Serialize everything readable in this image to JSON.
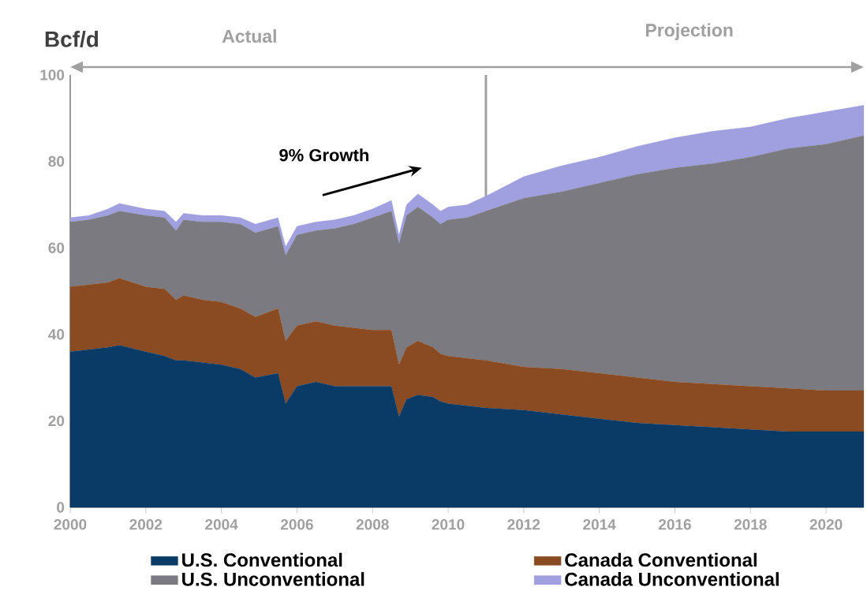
{
  "chart_data": {
    "type": "area",
    "stacked": true,
    "ylabel": "Bcf/d",
    "x": [
      2000.0,
      2000.5,
      2001.0,
      2001.3,
      2002.0,
      2002.5,
      2002.8,
      2003.0,
      2003.5,
      2004.0,
      2004.5,
      2004.9,
      2005.5,
      2005.7,
      2006.0,
      2006.5,
      2007.0,
      2007.5,
      2008.0,
      2008.5,
      2008.7,
      2008.9,
      2009.2,
      2009.6,
      2009.8,
      2010.0,
      2010.5,
      2011.0,
      2012.0,
      2013.0,
      2014.0,
      2015.0,
      2016.0,
      2017.0,
      2018.0,
      2019.0,
      2020.0,
      2021.0
    ],
    "series": [
      {
        "name": "U.S. Conventional",
        "color": "#0a3a66",
        "values": [
          36,
          36.5,
          37,
          37.5,
          36,
          35,
          34,
          34,
          33.5,
          33,
          32,
          30,
          31,
          24,
          28,
          29,
          28,
          28,
          28,
          28,
          21,
          25,
          26,
          25.5,
          24.5,
          24,
          23.5,
          23,
          22.5,
          21.5,
          20.5,
          19.5,
          19,
          18.5,
          18,
          17.5,
          17.5,
          17.5
        ]
      },
      {
        "name": "Canada Conventional",
        "color": "#8a4a22",
        "values": [
          15,
          15,
          15,
          15.5,
          15,
          15.5,
          14,
          15,
          14.5,
          14.5,
          14,
          14,
          15,
          14.5,
          14,
          14,
          14,
          13.5,
          13,
          13,
          12,
          12,
          12.5,
          11.5,
          11,
          11,
          11,
          11,
          10,
          10.5,
          10.5,
          10.5,
          10,
          10,
          10,
          10,
          9.5,
          9.5
        ]
      },
      {
        "name": "U.S. Unconventional",
        "color": "#7a7a80",
        "values": [
          15,
          15,
          15.5,
          15.5,
          16.5,
          16.5,
          16,
          17.5,
          18,
          18.5,
          19.5,
          19.5,
          19,
          19.8,
          21,
          21,
          22.5,
          24,
          26,
          27.5,
          28,
          30.5,
          31,
          30,
          30,
          31.5,
          32.5,
          34.5,
          39,
          41,
          44,
          47,
          49.5,
          51,
          53,
          55.5,
          57,
          59
        ]
      },
      {
        "name": "Canada Unconventional",
        "color": "#a0a0e0",
        "values": [
          1,
          1,
          1.5,
          1.8,
          1.5,
          1.5,
          2,
          1.5,
          1.5,
          1.5,
          1.5,
          2,
          2,
          2,
          2,
          2,
          2,
          2,
          2,
          2.5,
          2,
          2.5,
          3,
          3,
          3,
          3,
          3,
          3.5,
          5,
          6,
          6,
          6.5,
          7,
          7.5,
          7,
          7,
          7.5,
          7
        ]
      }
    ],
    "xlim": [
      2000,
      2021
    ],
    "ylim": [
      0,
      100
    ],
    "xticks": [
      2000,
      2002,
      2004,
      2006,
      2008,
      2010,
      2012,
      2014,
      2016,
      2018,
      2020
    ],
    "yticks": [
      0,
      20,
      40,
      60,
      80,
      100
    ],
    "grid": false,
    "legend": "bottom",
    "ref_lines": [
      {
        "axis": "x",
        "value": 2011,
        "color": "#a0a0a0"
      }
    ],
    "annotations": [
      "Actual",
      "Projection",
      "9% Growth"
    ]
  }
}
